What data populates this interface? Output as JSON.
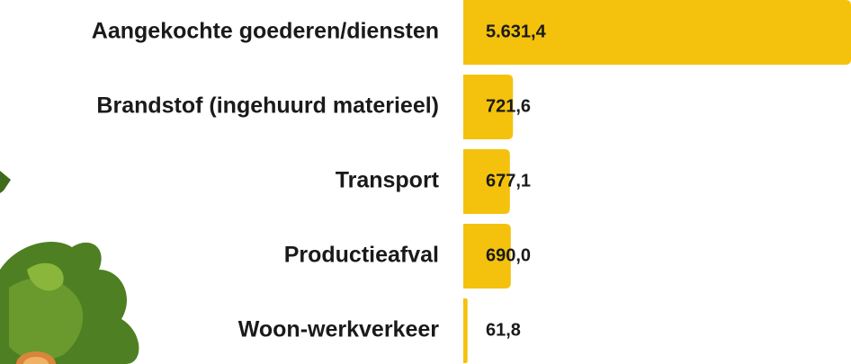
{
  "chart_data": {
    "type": "barh",
    "categories": [
      "Aangekochte goederen/diensten",
      "Brandstof (ingehuurd materieel)",
      "Transport",
      "Productieafval",
      "Woon-werkverkeer"
    ],
    "values": [
      5631.4,
      721.6,
      677.1,
      690.0,
      61.8
    ],
    "value_labels": [
      "5.631,4",
      "721,6",
      "677,1",
      "690,0",
      "61,8"
    ],
    "color": "#f4c20d"
  }
}
